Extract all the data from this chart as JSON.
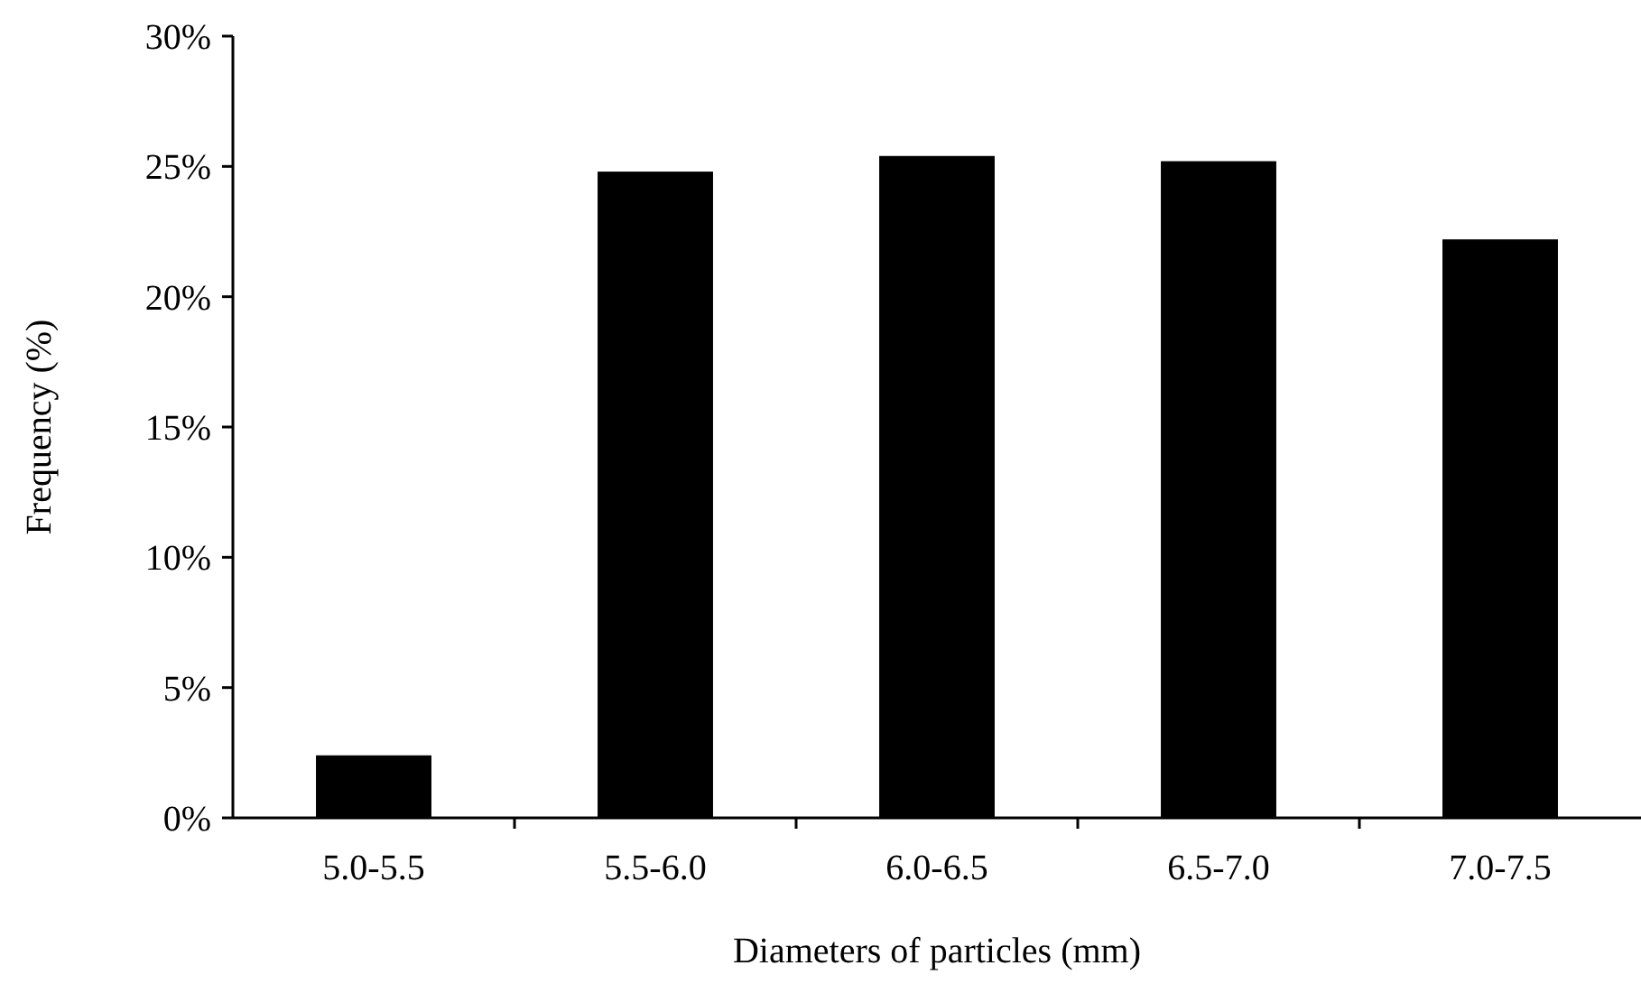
{
  "chart_data": {
    "type": "bar",
    "xlabel": "Diameters of particles (mm)",
    "ylabel": "Frequency (%)",
    "categories": [
      "5.0-5.5",
      "5.5-6.0",
      "6.0-6.5",
      "6.5-7.0",
      "7.0-7.5"
    ],
    "values": [
      2.4,
      24.8,
      25.4,
      25.2,
      22.2
    ],
    "color": "#000000",
    "ylim": [
      0,
      30
    ],
    "yticks": [
      {
        "value": 0,
        "label": "0%"
      },
      {
        "value": 5,
        "label": "5%"
      },
      {
        "value": 10,
        "label": "10%"
      },
      {
        "value": 15,
        "label": "15%"
      },
      {
        "value": 20,
        "label": "20%"
      },
      {
        "value": 25,
        "label": "25%"
      },
      {
        "value": 30,
        "label": "30%"
      }
    ],
    "grid": false
  }
}
